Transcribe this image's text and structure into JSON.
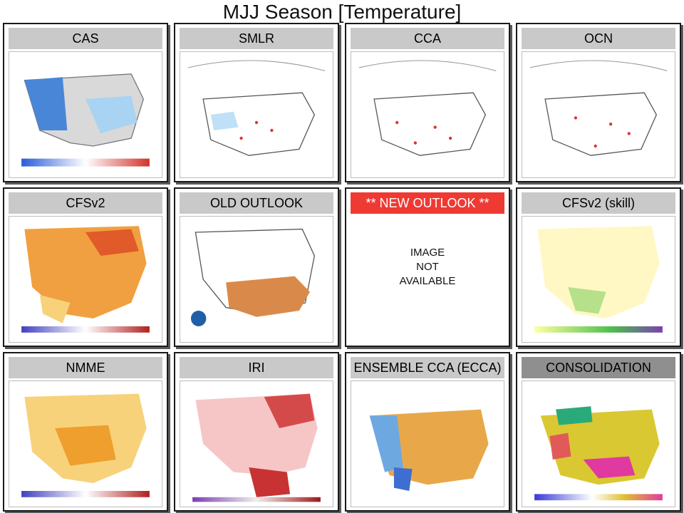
{
  "title": "MJJ Season [Temperature]",
  "panels": [
    {
      "label": "CAS",
      "style": "normal",
      "icon": "temperature-map"
    },
    {
      "label": "SMLR",
      "style": "normal",
      "icon": "temperature-map"
    },
    {
      "label": "CCA",
      "style": "normal",
      "icon": "temperature-map"
    },
    {
      "label": "OCN",
      "style": "normal",
      "icon": "temperature-map"
    },
    {
      "label": "CFSv2",
      "style": "normal",
      "icon": "temperature-map"
    },
    {
      "label": "OLD OUTLOOK",
      "style": "normal",
      "icon": "temperature-map"
    },
    {
      "label": "** NEW OUTLOOK **",
      "style": "red",
      "unavailable": [
        "IMAGE",
        "NOT",
        "AVAILABLE"
      ]
    },
    {
      "label": "CFSv2 (skill)",
      "style": "normal",
      "icon": "temperature-map"
    },
    {
      "label": "NMME",
      "style": "normal",
      "icon": "temperature-map"
    },
    {
      "label": "IRI",
      "style": "normal",
      "icon": "temperature-map"
    },
    {
      "label": "ENSEMBLE CCA (ECCA)",
      "style": "normal",
      "icon": "temperature-map"
    },
    {
      "label": "CONSOLIDATION",
      "style": "dark",
      "icon": "temperature-map"
    }
  ],
  "colors": {
    "header_gray": "#c9c9c9",
    "header_red": "#ee3a33",
    "header_dark": "#8f8f8f",
    "warm": "#e8a84a",
    "cool": "#6ea8e0"
  }
}
